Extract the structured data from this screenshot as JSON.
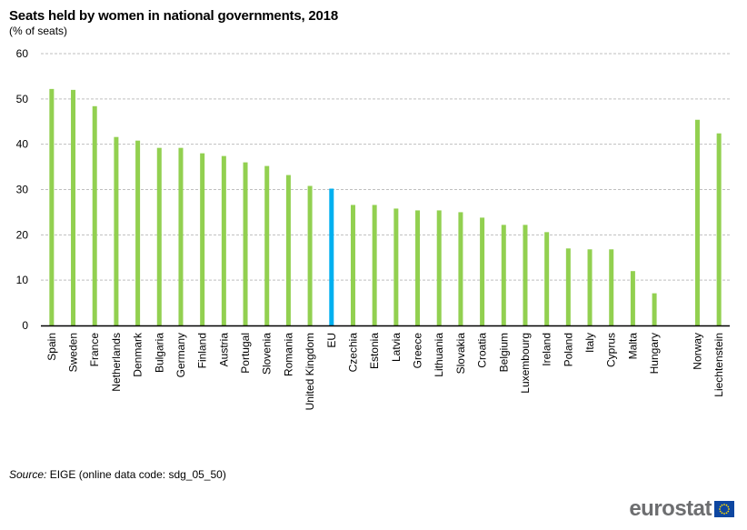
{
  "header": {
    "title": "Seats held by women in national governments, 2018",
    "subtitle": "(% of seats)"
  },
  "footer": {
    "source_label": "Source:",
    "source_text": " EIGE (online data code: sdg_05_50)",
    "logo_text": "eurostat"
  },
  "colors": {
    "bar": "#92d050",
    "highlight": "#00b0f0",
    "grid": "#bfbfbf",
    "axis": "#000000"
  },
  "chart_data": {
    "type": "bar",
    "title": "Seats held by women in national governments, 2018",
    "subtitle": "(% of seats)",
    "xlabel": "",
    "ylabel": "% of seats",
    "ylim": [
      0,
      60
    ],
    "yticks": [
      0,
      10,
      20,
      30,
      40,
      50,
      60
    ],
    "grid": true,
    "highlight_category": "EU",
    "gap_before": [
      "Norway"
    ],
    "categories": [
      "Spain",
      "Sweden",
      "France",
      "Netherlands",
      "Denmark",
      "Bulgaria",
      "Germany",
      "Finland",
      "Austria",
      "Portugal",
      "Slovenia",
      "Romania",
      "United Kingdom",
      "EU",
      "Czechia",
      "Estonia",
      "Latvia",
      "Greece",
      "Lithuania",
      "Slovakia",
      "Croatia",
      "Belgium",
      "Luxembourg",
      "Ireland",
      "Poland",
      "Italy",
      "Cyprus",
      "Malta",
      "Hungary",
      "Norway",
      "Liechtenstein"
    ],
    "values": [
      52.2,
      52.0,
      48.4,
      41.6,
      40.8,
      39.2,
      39.2,
      38.0,
      37.4,
      36.0,
      35.2,
      33.2,
      30.8,
      30.2,
      26.6,
      26.6,
      25.8,
      25.4,
      25.4,
      25.0,
      23.8,
      22.2,
      22.2,
      20.6,
      17.0,
      16.8,
      16.8,
      12.0,
      7.1,
      45.4,
      42.4
    ]
  }
}
